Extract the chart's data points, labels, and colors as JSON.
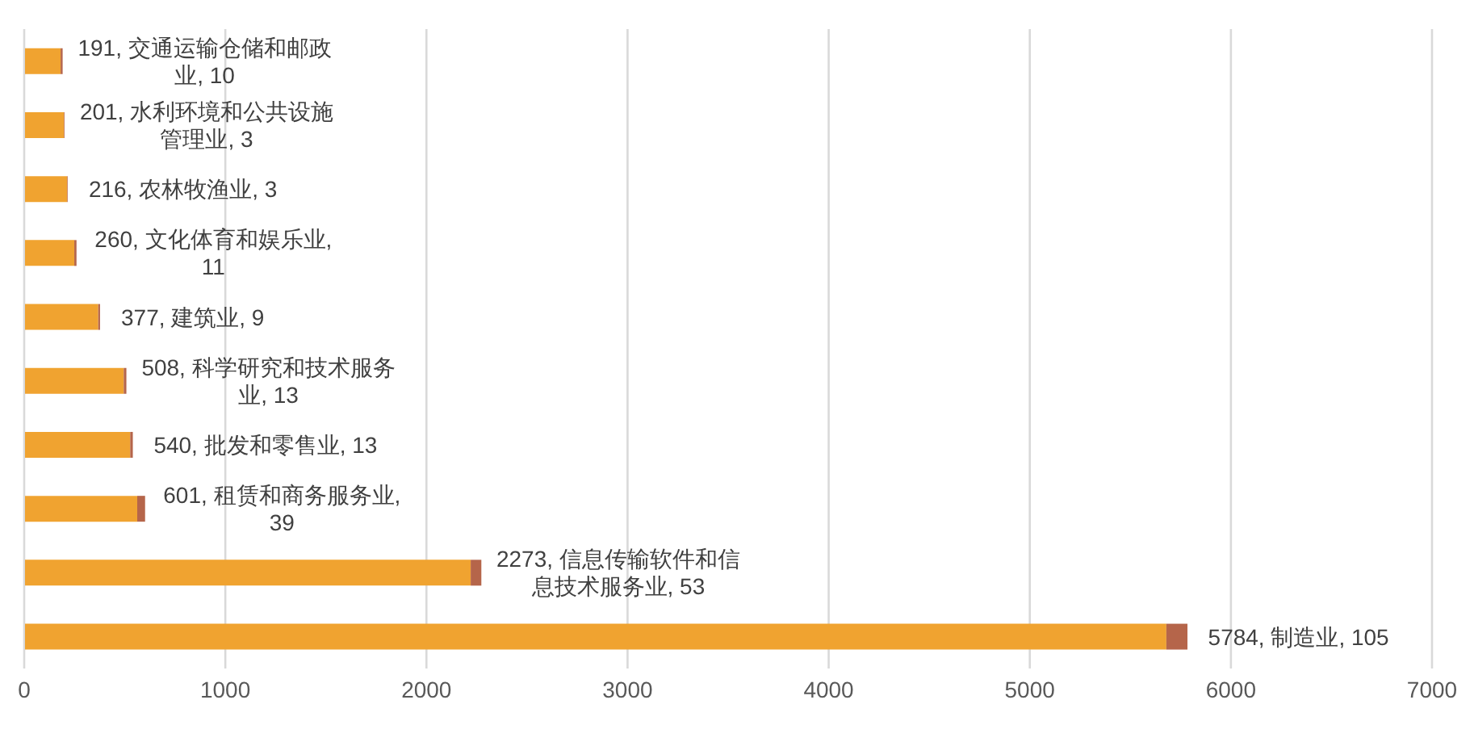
{
  "chart_data": {
    "type": "bar",
    "orientation": "horizontal",
    "stacked": true,
    "categories": [
      null,
      null,
      null,
      null,
      null,
      null,
      null,
      null,
      null,
      null
    ],
    "series": [
      {
        "color": "#f0a330",
        "values": [
          181,
          198,
          213,
          249,
          368,
          495,
          527,
          562,
          2220,
          5679
        ]
      },
      {
        "color": "#b5654a",
        "values": [
          10,
          3,
          3,
          11,
          9,
          13,
          13,
          39,
          53,
          105
        ],
        "value_labels": [
          "191, 交通运输仓储和邮政业, 10",
          "201, 水利环境和公共设施管理业, 3",
          "216, 农林牧渔业, 3",
          "260, 文化体育和娱乐业, 11",
          "377, 建筑业, 9",
          "508, 科学研究和技术服务业, 13",
          "540, 批发和零售业, 13",
          "601, 租赁和商务服务业, 39",
          "2273, 信息传输软件和信息技术服务业, 53",
          "5784, 制造业, 105"
        ]
      }
    ],
    "xlim": [
      0,
      7000
    ],
    "xticks": [
      0,
      1000,
      2000,
      3000,
      4000,
      5000,
      6000,
      7000
    ],
    "grid": "x",
    "legend": false,
    "tick_labels": "x"
  }
}
